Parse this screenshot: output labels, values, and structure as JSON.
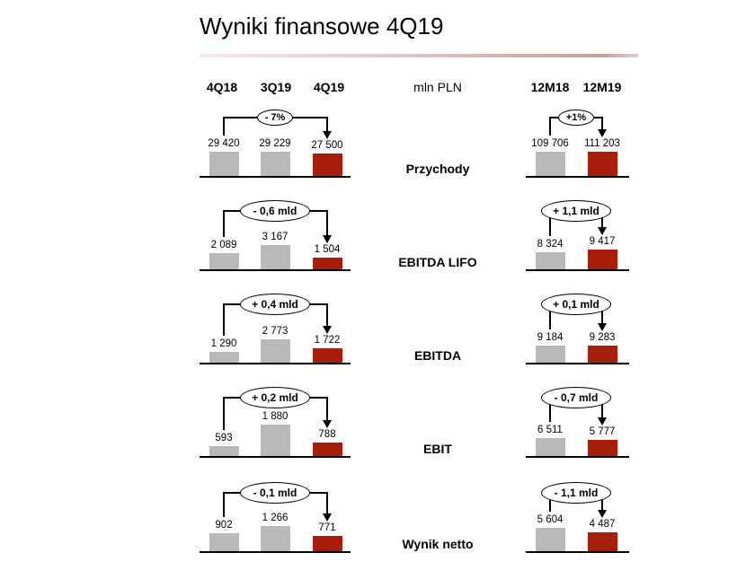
{
  "title": "Wyniki finansowe 4Q19",
  "unit_label": "mln PLN",
  "columns": {
    "quarterly": [
      "4Q18",
      "3Q19",
      "4Q19"
    ],
    "annual": [
      "12M18",
      "12M19"
    ]
  },
  "colors": {
    "bar_neutral": "#b9b9b9",
    "bar_highlight": "#a81e0d",
    "line": "#000000",
    "accent_gradient_start": "#f3eaea",
    "accent_gradient_end": "#c79f9f"
  },
  "chart_data": {
    "type": "bar",
    "layout": "small-multiples; one row per metric; left group = quarterly categories, right group = annual categories; last bar of each group highlighted red; change bubble with arrow from first to last bar",
    "unit": "mln PLN",
    "quarterly_categories": [
      "4Q18",
      "3Q19",
      "4Q19"
    ],
    "annual_categories": [
      "12M18",
      "12M19"
    ],
    "rows": [
      {
        "metric": "Przychody",
        "quarterly": {
          "values": [
            29420,
            29229,
            27500
          ],
          "labels": [
            "29 420",
            "29 229",
            "27 500"
          ],
          "change": "- 7%"
        },
        "annual": {
          "values": [
            109706,
            111203
          ],
          "labels": [
            "109 706",
            "111 203"
          ],
          "change": "+1%"
        }
      },
      {
        "metric": "EBITDA LIFO",
        "quarterly": {
          "values": [
            2089,
            3167,
            1504
          ],
          "labels": [
            "2 089",
            "3 167",
            "1 504"
          ],
          "change": "- 0,6 mld"
        },
        "annual": {
          "values": [
            8324,
            9417
          ],
          "labels": [
            "8 324",
            "9 417"
          ],
          "change": "+ 1,1 mld"
        }
      },
      {
        "metric": "EBITDA",
        "quarterly": {
          "values": [
            1290,
            2773,
            1722
          ],
          "labels": [
            "1 290",
            "2 773",
            "1 722"
          ],
          "change": "+ 0,4 mld"
        },
        "annual": {
          "values": [
            9184,
            9283
          ],
          "labels": [
            "9 184",
            "9 283"
          ],
          "change": "+ 0,1 mld"
        }
      },
      {
        "metric": "EBIT",
        "quarterly": {
          "values": [
            593,
            1880,
            788
          ],
          "labels": [
            "593",
            "1 880",
            "788"
          ],
          "change": "+ 0,2 mld"
        },
        "annual": {
          "values": [
            6511,
            5777
          ],
          "labels": [
            "6 511",
            "5 777"
          ],
          "change": "- 0,7 mld"
        }
      },
      {
        "metric": "Wynik netto",
        "quarterly": {
          "values": [
            902,
            1266,
            771
          ],
          "labels": [
            "902",
            "1 266",
            "771"
          ],
          "change": "- 0,1 mld"
        },
        "annual": {
          "values": [
            5604,
            4487
          ],
          "labels": [
            "5 604",
            "4 487"
          ],
          "change": "- 1,1 mld"
        }
      }
    ]
  }
}
